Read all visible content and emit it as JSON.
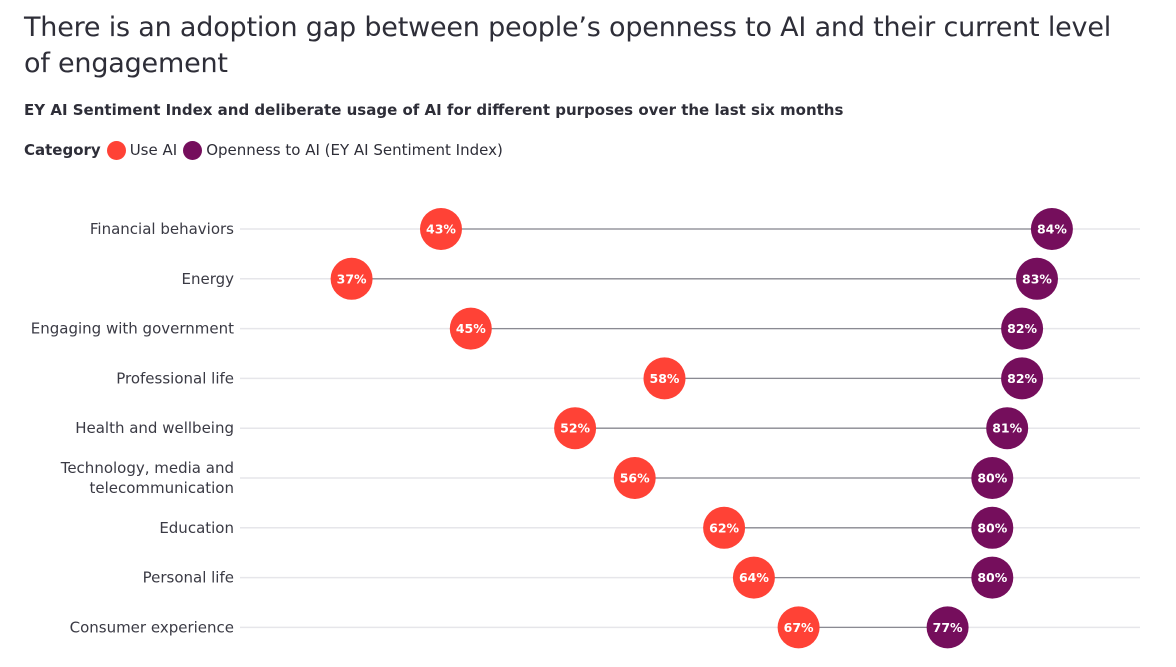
{
  "title": "There is an adoption gap between people’s openness to AI and their current level of engagement",
  "subtitle": "EY AI Sentiment Index and deliberate usage of AI for different purposes over the last six months",
  "legend": {
    "title": "Category",
    "items": [
      {
        "label": "Use AI",
        "color": "#ff4236"
      },
      {
        "label": "Openness to AI (EY AI Sentiment Index)",
        "color": "#750e5c"
      }
    ]
  },
  "chart_data": {
    "type": "dumbbell",
    "value_suffix": "%",
    "categories": [
      [
        "Financial behaviors"
      ],
      [
        "Energy"
      ],
      [
        "Engaging with government"
      ],
      [
        "Professional life"
      ],
      [
        "Health and wellbeing"
      ],
      [
        "Technology, media and",
        "telecommunication"
      ],
      [
        "Education"
      ],
      [
        "Personal life"
      ],
      [
        "Consumer experience"
      ]
    ],
    "series": [
      {
        "name": "Use AI",
        "color": "#ff4236",
        "values": [
          43,
          37,
          45,
          58,
          52,
          56,
          62,
          64,
          67
        ]
      },
      {
        "name": "Openness to AI (EY AI Sentiment Index)",
        "color": "#750e5c",
        "values": [
          84,
          83,
          82,
          82,
          81,
          80,
          80,
          80,
          77
        ]
      }
    ]
  }
}
